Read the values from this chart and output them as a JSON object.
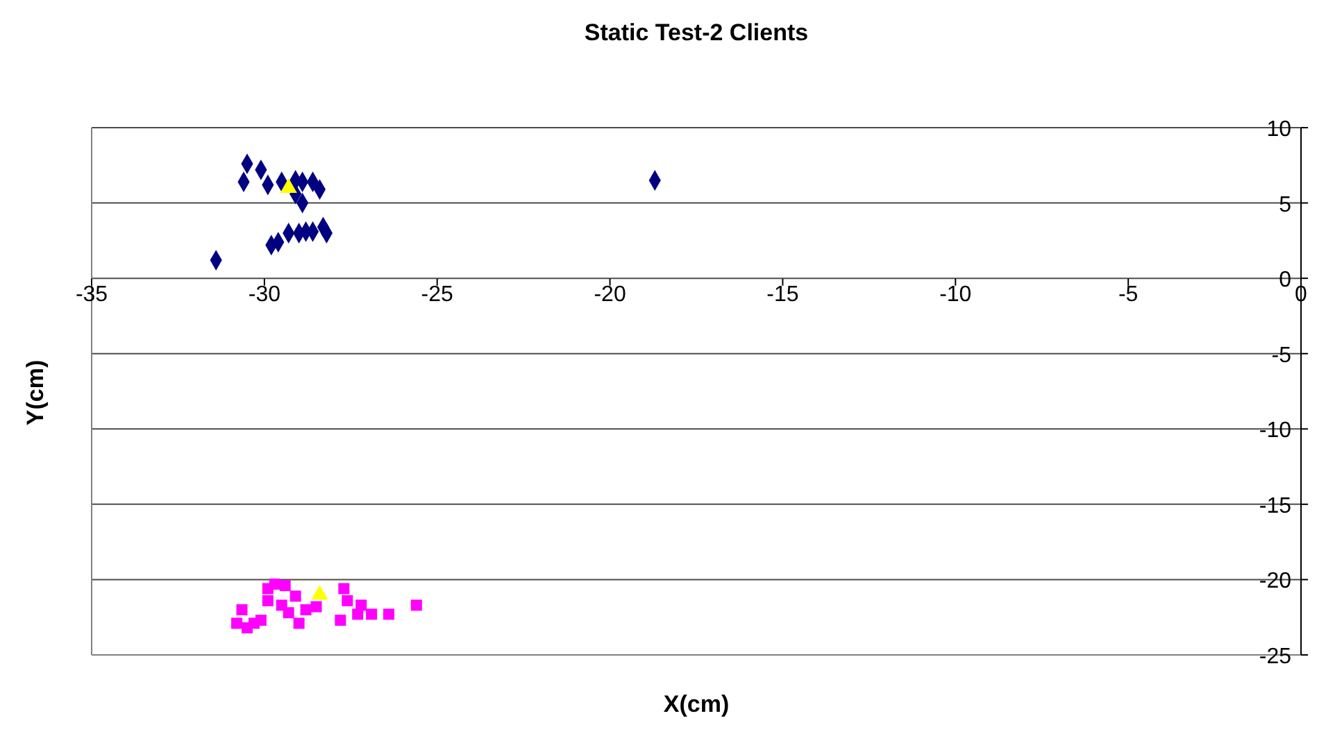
{
  "chart_data": {
    "type": "scatter",
    "title": "Static Test-2 Clients",
    "xlabel": "X(cm)",
    "ylabel": "Y(cm)",
    "xlim": [
      -35,
      0
    ],
    "xticks": [
      -35,
      -30,
      -25,
      -20,
      -15,
      -10,
      -5,
      0
    ],
    "ylim": [
      -25,
      10
    ],
    "yticks": [
      -25,
      -20,
      -15,
      -10,
      -5,
      0,
      5,
      10
    ],
    "grid": "y",
    "legend": false,
    "series": [
      {
        "color": "#000080",
        "marker": "diamond",
        "x": [
          -30.5,
          -30.6,
          -30.1,
          -29.9,
          -29.1,
          -28.9,
          -28.6,
          -28.4,
          -29.1,
          -28.9,
          -29.5,
          -29.8,
          -29.3,
          -29.0,
          -28.8,
          -28.6,
          -28.3,
          -28.2,
          -29.6,
          -31.4,
          -18.7
        ],
        "values": [
          7.6,
          6.4,
          7.2,
          6.2,
          6.5,
          6.4,
          6.4,
          5.9,
          5.6,
          5.0,
          6.4,
          2.2,
          3.0,
          3.0,
          3.1,
          3.1,
          3.4,
          3.0,
          2.4,
          1.2,
          6.5
        ]
      },
      {
        "color": "#ff00ff",
        "marker": "square",
        "x": [
          -29.7,
          -29.9,
          -30.65,
          -30.8,
          -30.5,
          -30.1,
          -29.5,
          -29.1,
          -29.0,
          -28.8,
          -27.8,
          -27.7,
          -27.6,
          -27.2,
          -26.9,
          -26.4,
          -25.6,
          -29.4,
          -29.9,
          -29.3,
          -28.5,
          -27.3,
          -30.3
        ],
        "values": [
          -20.3,
          -20.6,
          -22.0,
          -22.9,
          -23.2,
          -22.7,
          -21.7,
          -21.1,
          -22.9,
          -22.0,
          -22.7,
          -20.6,
          -21.4,
          -21.7,
          -22.3,
          -22.3,
          -21.7,
          -20.4,
          -21.4,
          -22.2,
          -21.8,
          -22.3,
          -22.9
        ]
      },
      {
        "color": "#ffff00",
        "marker": "triangle",
        "x": [
          -29.3,
          -28.4
        ],
        "values": [
          6.0,
          -21.0
        ]
      }
    ]
  }
}
